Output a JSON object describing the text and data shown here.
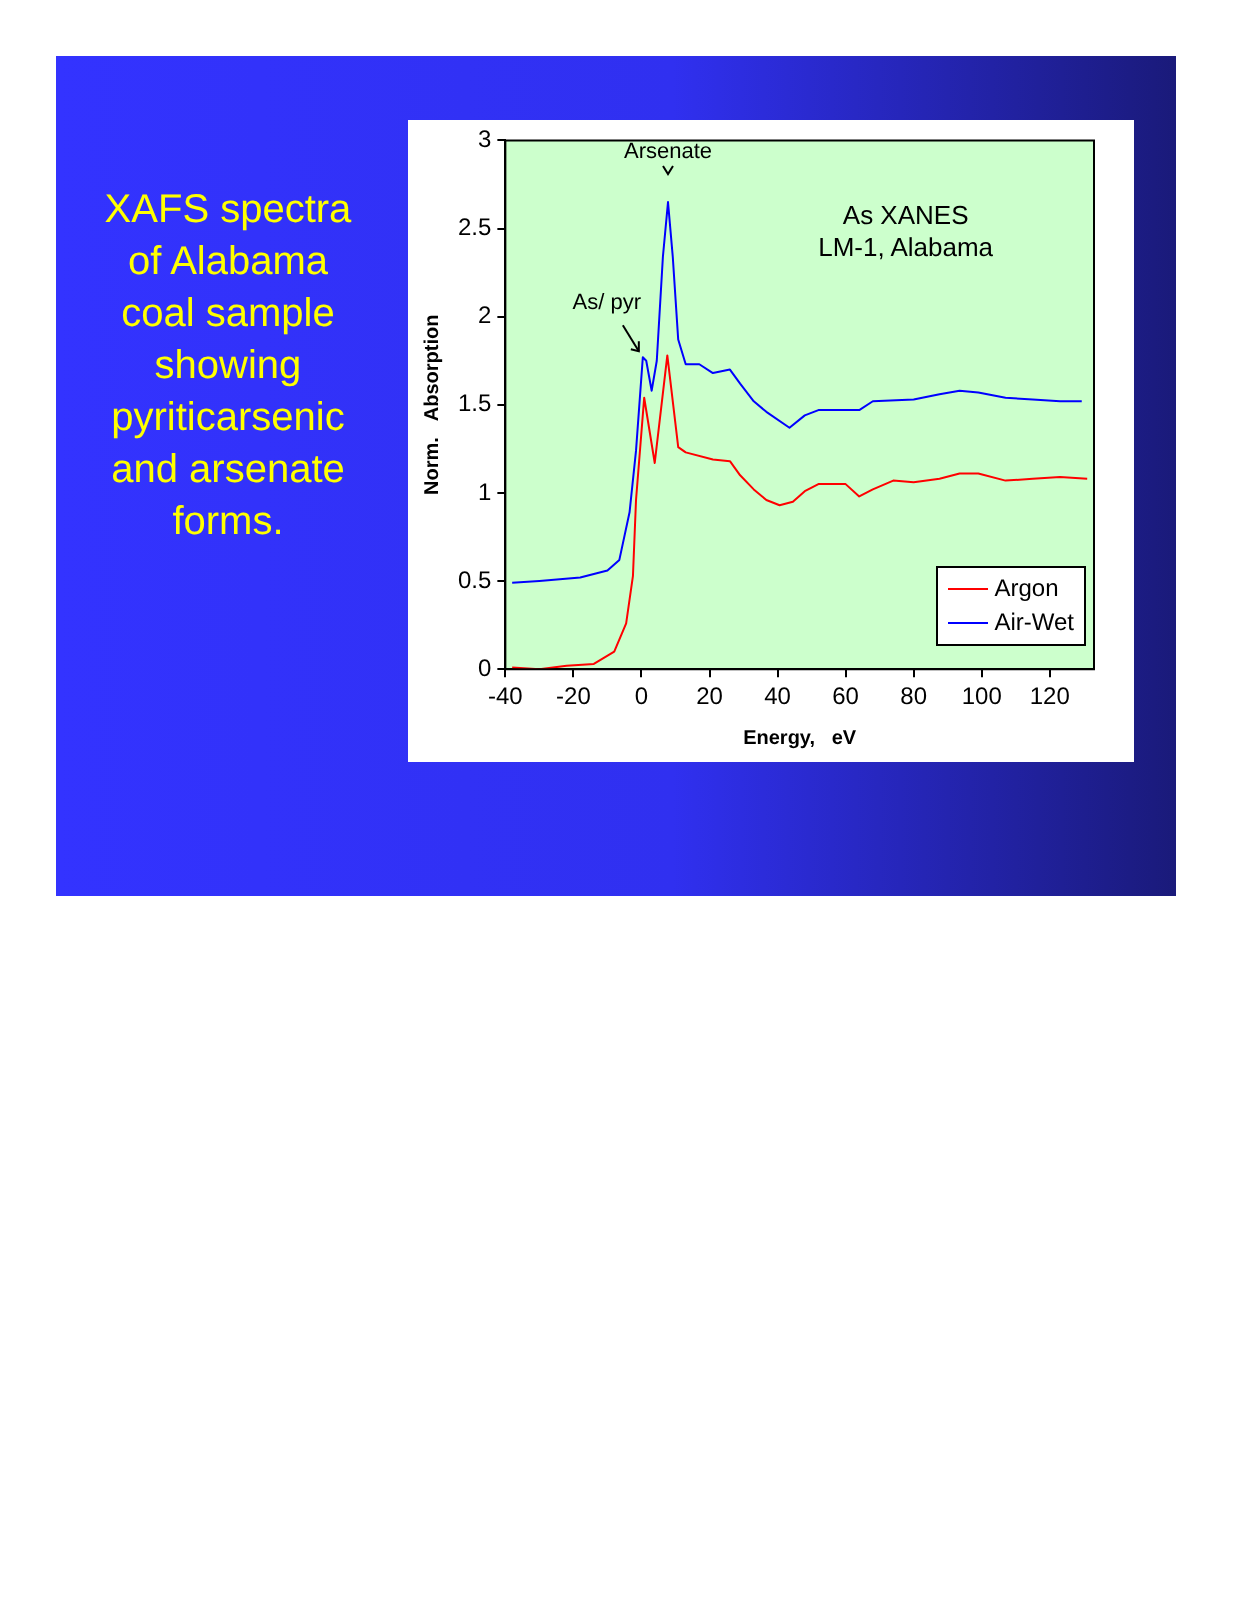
{
  "chart_data": {
    "type": "line",
    "title": "XAFS spectra of Alabama coal sample showing pyriticarsenic and arsenate forms.",
    "xlabel": "Energy,   eV",
    "ylabel": "Norm.   Absorption",
    "xlim": [
      -40,
      133
    ],
    "xticks": [
      -40,
      -20,
      0,
      20,
      40,
      60,
      80,
      100,
      120
    ],
    "ylim": [
      0,
      3
    ],
    "yticks": [
      0,
      0.5,
      1,
      1.5,
      2,
      2.5,
      3
    ],
    "grid": false,
    "legend": "bottom right",
    "marker": "none",
    "line_style": "solid",
    "annotations": [
      {
        "text": "Arsenate",
        "x": 7.8,
        "y": 2.65
      },
      {
        "text": "As/ pyr",
        "x": 0.4,
        "y": 1.77
      },
      "As XANES\nLM-1, Alabama"
    ],
    "series": [
      {
        "name": "Argon",
        "color": "#ff0000",
        "x": [
          -38,
          -30,
          -22,
          -14,
          -8,
          -4.5,
          -2.5,
          -1.6,
          0.8,
          3.9,
          7.6,
          10.8,
          13,
          21,
          26,
          29,
          33,
          36.7,
          40.6,
          44.5,
          48,
          52,
          60,
          64,
          68,
          74,
          80,
          87.6,
          93.5,
          99,
          107,
          115,
          123,
          131
        ],
        "values": [
          0.01,
          0,
          0.02,
          0.03,
          0.1,
          0.26,
          0.53,
          0.96,
          1.54,
          1.17,
          1.78,
          1.26,
          1.23,
          1.19,
          1.18,
          1.1,
          1.02,
          0.96,
          0.93,
          0.95,
          1.01,
          1.05,
          1.05,
          0.98,
          1.02,
          1.07,
          1.06,
          1.08,
          1.11,
          1.11,
          1.07,
          1.08,
          1.09,
          1.08
        ]
      },
      {
        "name": "Air-Wet",
        "color": "#0000ff",
        "x": [
          -38,
          -30,
          -18,
          -10,
          -6.5,
          -3.5,
          -1.6,
          0.4,
          1.4,
          3,
          4.5,
          6.3,
          7.8,
          9.2,
          10.8,
          13,
          17,
          21,
          26,
          29,
          33,
          36.7,
          43.5,
          48,
          52,
          60,
          64,
          68,
          80,
          87.6,
          93.5,
          99,
          107,
          115,
          123,
          129.4
        ],
        "values": [
          0.49,
          0.5,
          0.52,
          0.56,
          0.62,
          0.89,
          1.24,
          1.77,
          1.75,
          1.58,
          1.75,
          2.34,
          2.65,
          2.34,
          1.87,
          1.73,
          1.73,
          1.68,
          1.7,
          1.62,
          1.52,
          1.46,
          1.37,
          1.44,
          1.47,
          1.47,
          1.47,
          1.52,
          1.53,
          1.56,
          1.58,
          1.57,
          1.54,
          1.53,
          1.52,
          1.52
        ]
      }
    ]
  }
}
